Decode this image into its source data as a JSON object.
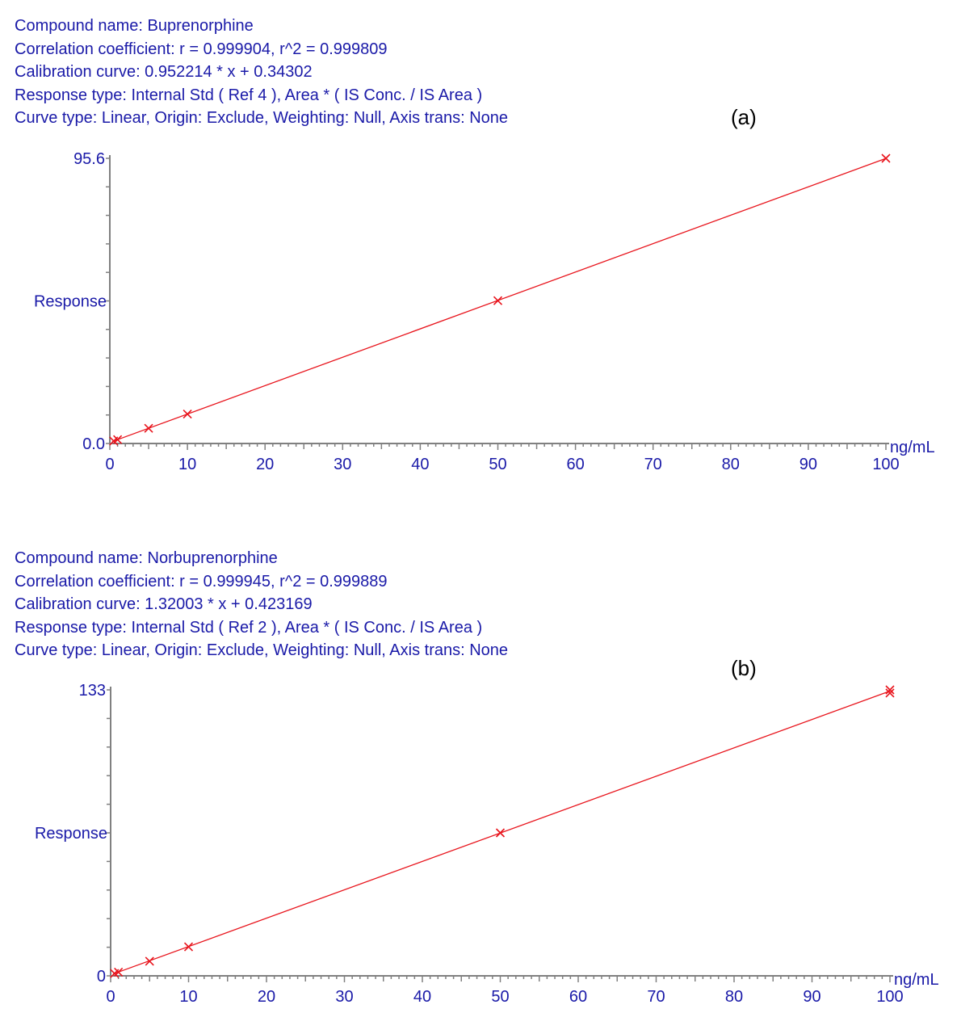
{
  "chart_data": [
    {
      "type": "scatter",
      "panel_label": "(a)",
      "header": [
        "Compound name: Buprenorphine",
        "Correlation coefficient: r = 0.999904, r^2 = 0.999809",
        "Calibration curve: 0.952214 * x + 0.34302",
        "Response type: Internal Std ( Ref 4 ), Area * ( IS Conc. / IS Area )",
        "Curve type: Linear, Origin: Exclude, Weighting: Null, Axis trans: None"
      ],
      "xlabel": "ng/mL",
      "ylabel": "Response",
      "xlim": [
        0,
        100
      ],
      "ylim": [
        0,
        95.6
      ],
      "ytick_labels": [
        "0.0",
        "95.6"
      ],
      "xticks": [
        0,
        10,
        20,
        30,
        40,
        50,
        60,
        70,
        80,
        90,
        100
      ],
      "fit": {
        "slope": 0.952214,
        "intercept": 0.34302
      },
      "x": [
        0.5,
        1,
        5,
        10,
        50,
        100
      ],
      "y": [
        0.82,
        1.3,
        5.1,
        9.87,
        47.9,
        95.6
      ],
      "color": "#e8141c"
    },
    {
      "type": "scatter",
      "panel_label": "(b)",
      "header": [
        "Compound name: Norbuprenorphine",
        "Correlation coefficient: r = 0.999945, r^2 = 0.999889",
        "Calibration curve: 1.32003 * x + 0.423169",
        "Response type: Internal Std ( Ref 2 ), Area * ( IS Conc. / IS Area )",
        "Curve type: Linear, Origin: Exclude, Weighting: Null, Axis trans: None"
      ],
      "xlabel": "ng/mL",
      "ylabel": "Response",
      "xlim": [
        0,
        100
      ],
      "ylim": [
        0,
        133
      ],
      "ytick_labels": [
        "0",
        "133"
      ],
      "xticks": [
        0,
        10,
        20,
        30,
        40,
        50,
        60,
        70,
        80,
        90,
        100
      ],
      "fit": {
        "slope": 1.32003,
        "intercept": 0.423169
      },
      "x": [
        0.5,
        1,
        5,
        10,
        50,
        100,
        100
      ],
      "y": [
        1.1,
        1.7,
        6.8,
        13.5,
        66.5,
        133,
        131.5
      ],
      "color": "#e8141c"
    }
  ]
}
